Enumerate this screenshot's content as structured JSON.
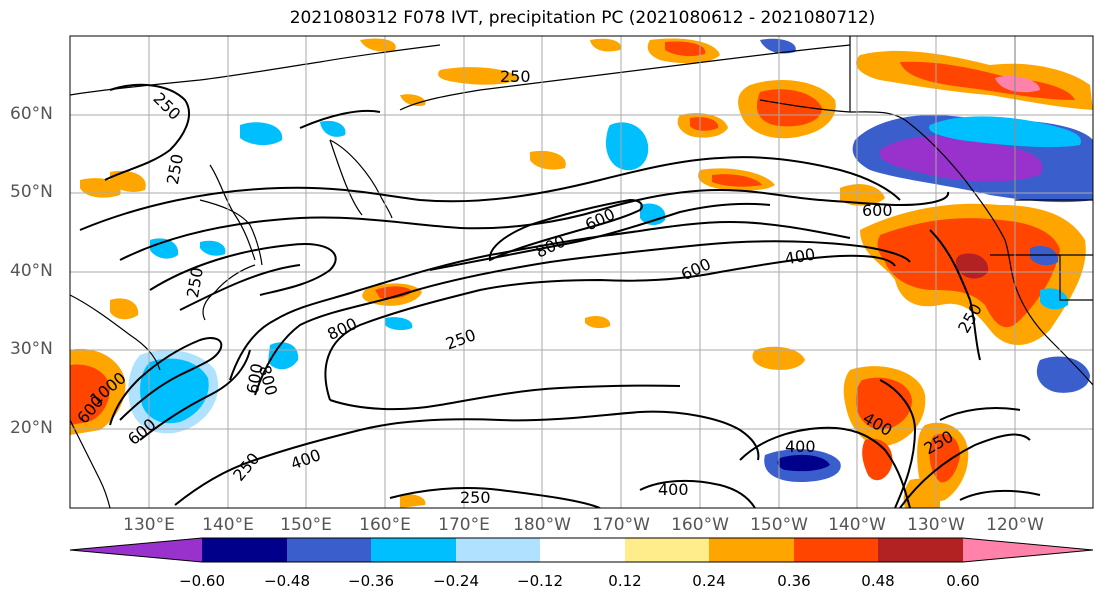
{
  "title": "2021080312 F078 IVT, precipitation PC (2021080612 - 2021080712)",
  "latitude_labels": [
    "60°N",
    "50°N",
    "40°N",
    "30°N",
    "20°N"
  ],
  "longitude_labels": [
    "130°E",
    "140°E",
    "150°E",
    "160°E",
    "170°E",
    "180°W",
    "170°W",
    "160°W",
    "150°W",
    "140°W",
    "130°W",
    "120°W"
  ],
  "colorbar": {
    "colors": [
      "#9932cc",
      "#00008b",
      "#3a5fcd",
      "#00bfff",
      "#b0e2ff",
      "#ffffff",
      "#ffec8b",
      "#ffa500",
      "#ff4500",
      "#b22222",
      "#ff82ab"
    ],
    "tick_labels": [
      "−0.60",
      "−0.48",
      "−0.36",
      "−0.24",
      "−0.12",
      "0.12",
      "0.24",
      "0.36",
      "0.48",
      "0.60"
    ]
  },
  "contour_labels": [
    "250",
    "250",
    "250",
    "600",
    "800",
    "600",
    "400",
    "600",
    "250",
    "800",
    "250",
    "600",
    "800",
    "600",
    "1000",
    "600",
    "250",
    "400",
    "250",
    "400",
    "400",
    "400",
    "250",
    "250"
  ]
}
